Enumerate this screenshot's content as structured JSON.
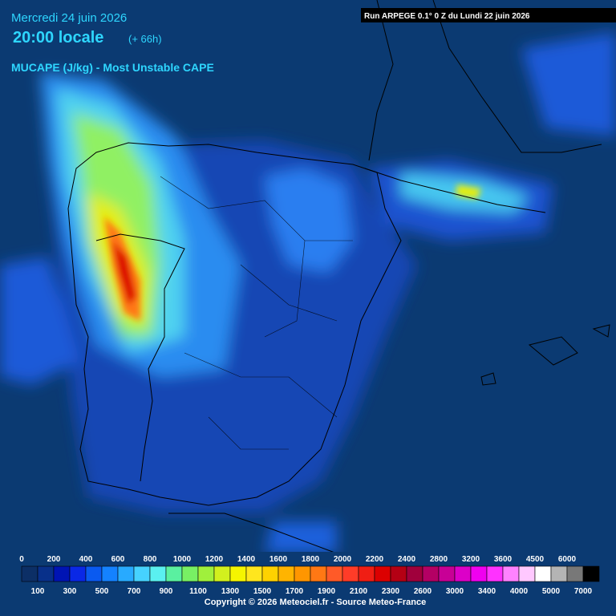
{
  "header": {
    "date": "Mercredi 24 juin 2026",
    "time": "20:00 locale",
    "lead": "(+ 66h)",
    "parameter": "MUCAPE (J/kg) - Most Unstable CAPE",
    "run": "Run ARPEGE 0.1° 0 Z du Lundi 22 juin 2026"
  },
  "legend": {
    "top_labels": [
      0,
      200,
      400,
      600,
      800,
      1000,
      1200,
      1400,
      1600,
      1800,
      2000,
      2200,
      2400,
      2800,
      3200,
      3600,
      4500,
      6000
    ],
    "bottom_labels": [
      100,
      300,
      500,
      700,
      900,
      1100,
      1300,
      1500,
      1700,
      1900,
      2100,
      2300,
      2600,
      3000,
      3400,
      4000,
      5000,
      7000
    ],
    "colors": [
      "#0c2f66",
      "#08308a",
      "#0014b4",
      "#0a28e6",
      "#0a5af0",
      "#1482ff",
      "#28aaff",
      "#46d2ff",
      "#5af0f0",
      "#5af0a0",
      "#78f064",
      "#a0f03c",
      "#d2f01e",
      "#f5f500",
      "#ffe61e",
      "#ffd200",
      "#ffb400",
      "#ff9600",
      "#ff7814",
      "#ff5a28",
      "#ff3c28",
      "#f01e14",
      "#dc0000",
      "#b40014",
      "#a0003c",
      "#b40064",
      "#c80096",
      "#dc00c8",
      "#f000f0",
      "#ff32ff",
      "#ff82ff",
      "#ffc8ff",
      "#ffffff",
      "#b4b4b4",
      "#787878",
      "#000000"
    ]
  },
  "footer": {
    "copyright": "Copyright © 2026 Meteociel.fr - Source Meteo-France"
  }
}
